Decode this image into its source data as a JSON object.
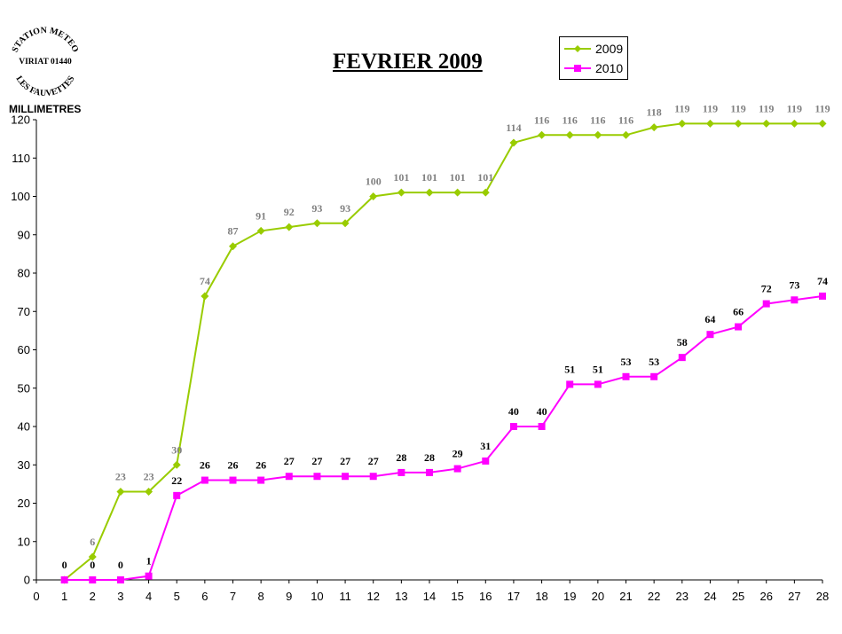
{
  "stamp": {
    "line1": "STATION METEO",
    "line2": "VIRIAT 01440",
    "line3": "LES FAUVETTES"
  },
  "colors": {
    "series_2009": "#99cc00",
    "series_2010": "#ff00ff",
    "label_2009": "#808080",
    "label_2010": "#000000"
  },
  "chart_data": {
    "type": "line",
    "title": "FEVRIER 2009",
    "ylabel": "MILLIMETRES",
    "xlabel": "",
    "xlim": [
      0,
      28
    ],
    "ylim": [
      0,
      120
    ],
    "x_ticks": [
      0,
      1,
      2,
      3,
      4,
      5,
      6,
      7,
      8,
      9,
      10,
      11,
      12,
      13,
      14,
      15,
      16,
      17,
      18,
      19,
      20,
      21,
      22,
      23,
      24,
      25,
      26,
      27,
      28
    ],
    "y_ticks": [
      0,
      10,
      20,
      30,
      40,
      50,
      60,
      70,
      80,
      90,
      100,
      110,
      120
    ],
    "grid": false,
    "legend_position": "top-right",
    "x": [
      1,
      2,
      3,
      4,
      5,
      6,
      7,
      8,
      9,
      10,
      11,
      12,
      13,
      14,
      15,
      16,
      17,
      18,
      19,
      20,
      21,
      22,
      23,
      24,
      25,
      26,
      27,
      28
    ],
    "series": [
      {
        "name": "2009",
        "marker": "diamond",
        "values": [
          0,
          6,
          23,
          23,
          30,
          74,
          87,
          91,
          92,
          93,
          93,
          100,
          101,
          101,
          101,
          101,
          114,
          116,
          116,
          116,
          116,
          118,
          119,
          119,
          119,
          119,
          119,
          119
        ],
        "labels": [
          "",
          "6",
          "23",
          "23",
          "30",
          "74",
          "87",
          "91",
          "92",
          "93",
          "93",
          "100",
          "101",
          "101",
          "101",
          "101",
          "114",
          "116",
          "116",
          "116",
          "116",
          "118",
          "119",
          "119",
          "119",
          "119",
          "119",
          "119"
        ]
      },
      {
        "name": "2010",
        "marker": "square",
        "values": [
          0,
          0,
          0,
          1,
          22,
          26,
          26,
          26,
          27,
          27,
          27,
          27,
          28,
          28,
          29,
          31,
          40,
          40,
          51,
          51,
          53,
          53,
          58,
          64,
          66,
          72,
          73,
          74
        ],
        "labels": [
          "0",
          "0",
          "0",
          "1",
          "22",
          "26",
          "26",
          "26",
          "27",
          "27",
          "27",
          "27",
          "28",
          "28",
          "29",
          "31",
          "40",
          "40",
          "51",
          "51",
          "53",
          "53",
          "58",
          "64",
          "66",
          "72",
          "73",
          "74"
        ]
      }
    ]
  }
}
